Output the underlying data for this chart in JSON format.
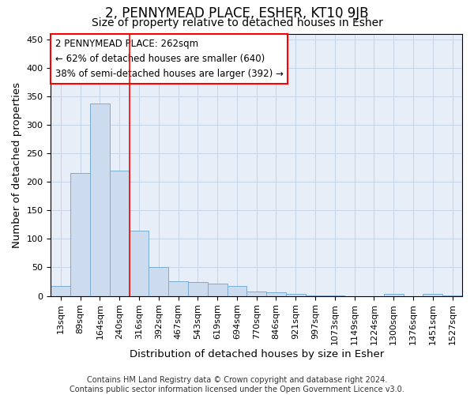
{
  "title": "2, PENNYMEAD PLACE, ESHER, KT10 9JB",
  "subtitle": "Size of property relative to detached houses in Esher",
  "xlabel": "Distribution of detached houses by size in Esher",
  "ylabel": "Number of detached properties",
  "categories": [
    "13sqm",
    "89sqm",
    "164sqm",
    "240sqm",
    "316sqm",
    "392sqm",
    "467sqm",
    "543sqm",
    "619sqm",
    "694sqm",
    "770sqm",
    "846sqm",
    "921sqm",
    "997sqm",
    "1073sqm",
    "1149sqm",
    "1224sqm",
    "1300sqm",
    "1376sqm",
    "1451sqm",
    "1527sqm"
  ],
  "values": [
    17,
    215,
    338,
    220,
    115,
    51,
    26,
    25,
    22,
    17,
    8,
    6,
    4,
    1,
    1,
    0,
    0,
    3,
    0,
    3,
    1
  ],
  "bar_color": "#ccdcee",
  "bar_edge_color": "#7aadd4",
  "grid_color": "#c8d4e8",
  "background_color": "#e8eef8",
  "vline_x": 3.5,
  "vline_color": "red",
  "annotation_text": "2 PENNYMEAD PLACE: 262sqm\n← 62% of detached houses are smaller (640)\n38% of semi-detached houses are larger (392) →",
  "annotation_box_color": "white",
  "annotation_box_edge": "red",
  "footnote": "Contains HM Land Registry data © Crown copyright and database right 2024.\nContains public sector information licensed under the Open Government Licence v3.0.",
  "ylim": [
    0,
    460
  ],
  "yticks": [
    0,
    50,
    100,
    150,
    200,
    250,
    300,
    350,
    400,
    450
  ],
  "title_fontsize": 12,
  "subtitle_fontsize": 10,
  "axis_label_fontsize": 9.5,
  "tick_fontsize": 8,
  "footnote_fontsize": 7,
  "annotation_fontsize": 8.5
}
